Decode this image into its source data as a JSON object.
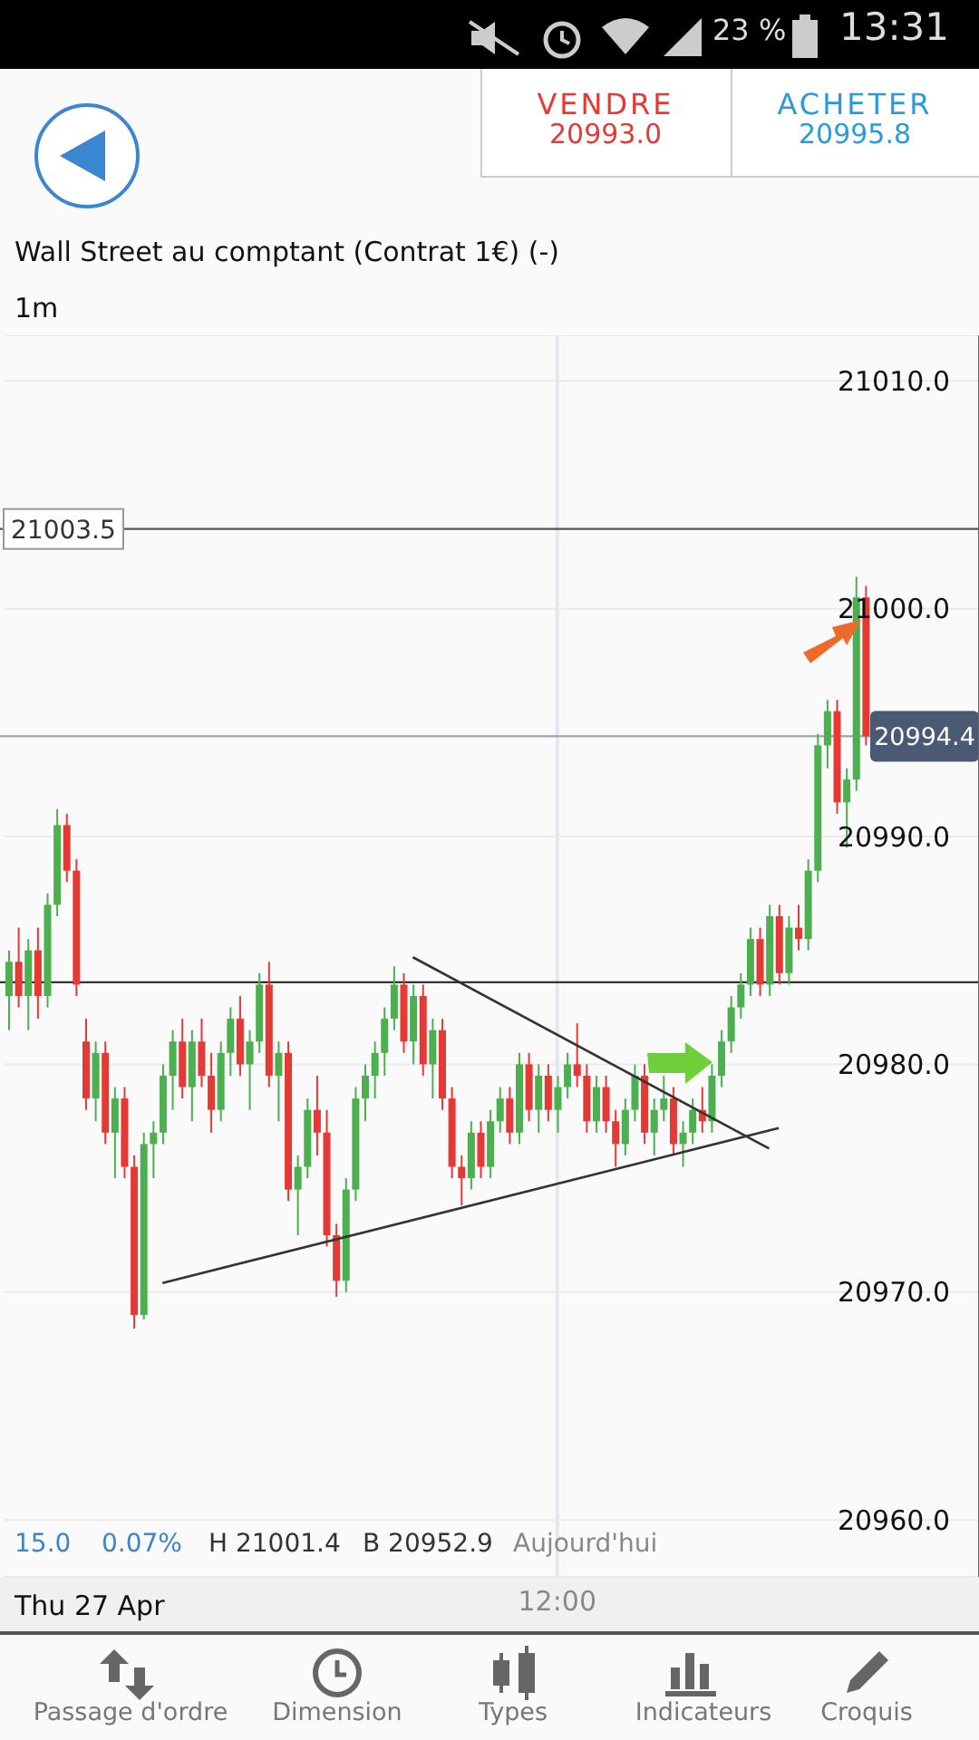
{
  "chart_data": {
    "type": "candlestick",
    "title": "Wall Street au comptant (Contrat 1€) (-)",
    "subtitle": "1m",
    "categories": [
      null,
      null,
      null,
      null,
      null,
      null,
      null,
      null,
      null,
      null,
      null,
      null,
      null,
      null,
      null,
      null,
      null,
      null,
      null,
      null,
      null,
      null,
      null,
      null,
      null,
      null,
      null,
      null,
      null,
      null,
      null,
      null,
      null,
      null,
      null,
      null,
      null,
      null,
      null,
      null,
      null,
      null,
      null,
      null,
      null,
      null,
      null,
      null,
      null,
      null,
      null,
      null,
      null,
      null,
      null,
      null,
      null,
      "12:00",
      null,
      null,
      null,
      null,
      null,
      null,
      null,
      null,
      null,
      null,
      null,
      null,
      null,
      null,
      null,
      null,
      null,
      null,
      null,
      null,
      null,
      null,
      null,
      null,
      null,
      null,
      null,
      null,
      null,
      null,
      null,
      null
    ],
    "ohlc": [
      [
        20983,
        20985,
        20981.5,
        20984.5
      ],
      [
        20984.5,
        20986,
        20982.5,
        20983
      ],
      [
        20983,
        20985.5,
        20981.5,
        20985
      ],
      [
        20985,
        20986,
        20982,
        20983
      ],
      [
        20983,
        20987.5,
        20982.5,
        20987
      ],
      [
        20987,
        20991.2,
        20986.5,
        20990.5
      ],
      [
        20990.5,
        20991,
        20988,
        20988.5
      ],
      [
        20988.5,
        20989,
        20983,
        20983.5
      ],
      [
        20981,
        20982,
        20978,
        20978.5
      ],
      [
        20978.5,
        20981,
        20977.5,
        20980.5
      ],
      [
        20980.5,
        20981,
        20976.5,
        20977
      ],
      [
        20977,
        20979,
        20975,
        20978.5
      ],
      [
        20978.5,
        20979,
        20975,
        20975.5
      ],
      [
        20975.5,
        20976,
        20968.4,
        20969
      ],
      [
        20969,
        20977,
        20968.8,
        20976.5
      ],
      [
        20976.5,
        20977.5,
        20975,
        20977
      ],
      [
        20977,
        20980,
        20976.5,
        20979.5
      ],
      [
        20979.5,
        20981.5,
        20978,
        20981
      ],
      [
        20981,
        20982,
        20978.5,
        20979
      ],
      [
        20979,
        20981.5,
        20977.5,
        20981
      ],
      [
        20981,
        20982,
        20979,
        20979.5
      ],
      [
        20979.5,
        20980.5,
        20977,
        20978
      ],
      [
        20978,
        20981,
        20977.5,
        20980.5
      ],
      [
        20980.5,
        20982.5,
        20979.5,
        20982
      ],
      [
        20982,
        20983,
        20979.5,
        20980
      ],
      [
        20980,
        20981.5,
        20978,
        20981
      ],
      [
        20981,
        20984,
        20980.5,
        20983.5
      ],
      [
        20983.5,
        20984.5,
        20979,
        20979.5
      ],
      [
        20979.5,
        20981,
        20977.5,
        20980.5
      ],
      [
        20980.5,
        20981,
        20974,
        20974.5
      ],
      [
        20974.5,
        20976,
        20972.5,
        20975.5
      ],
      [
        20975.5,
        20978.5,
        20975,
        20978
      ],
      [
        20978,
        20979.5,
        20976,
        20977
      ],
      [
        20977,
        20978,
        20972,
        20972.5
      ],
      [
        20972.5,
        20973,
        20969.8,
        20970.5
      ],
      [
        20970.5,
        20975,
        20970,
        20974.5
      ],
      [
        20974.5,
        20979,
        20974,
        20978.5
      ],
      [
        20978.5,
        20980,
        20977.5,
        20979.5
      ],
      [
        20979.5,
        20981,
        20978.5,
        20980.5
      ],
      [
        20980.5,
        20982.5,
        20979.5,
        20982
      ],
      [
        20982,
        20984.3,
        20981.5,
        20983.5
      ],
      [
        20983.5,
        20984,
        20980.5,
        20981
      ],
      [
        20981,
        20983.5,
        20980,
        20983
      ],
      [
        20983,
        20983.5,
        20979.5,
        20980
      ],
      [
        20980,
        20982,
        20978.5,
        20981.5
      ],
      [
        20981.5,
        20982,
        20978,
        20978.5
      ],
      [
        20978.5,
        20979,
        20975,
        20975.5
      ],
      [
        20975.5,
        20976,
        20973.8,
        20975
      ],
      [
        20975,
        20977.5,
        20974.5,
        20977
      ],
      [
        20977,
        20977.5,
        20975,
        20975.5
      ],
      [
        20975.5,
        20978,
        20975,
        20977.5
      ],
      [
        20977.5,
        20979,
        20977,
        20978.5
      ],
      [
        20978.5,
        20979,
        20976.5,
        20977
      ],
      [
        20977,
        20980.5,
        20976.5,
        20980
      ],
      [
        20980,
        20980.5,
        20977.5,
        20978
      ],
      [
        20978,
        20980,
        20977,
        20979.5
      ],
      [
        20979.5,
        20980,
        20977.5,
        20978
      ],
      [
        20978,
        20979.5,
        20977,
        20979
      ],
      [
        20979,
        20980.5,
        20978.5,
        20980
      ],
      [
        20980,
        20981.8,
        20979,
        20979.5
      ],
      [
        20979.5,
        20980,
        20977,
        20977.5
      ],
      [
        20977.5,
        20979.5,
        20977,
        20979
      ],
      [
        20979,
        20979.5,
        20977,
        20977.5
      ],
      [
        20977.5,
        20978,
        20975.5,
        20976.5
      ],
      [
        20976.5,
        20978.5,
        20976,
        20978
      ],
      [
        20978,
        20980,
        20977.5,
        20979.5
      ],
      [
        20979.5,
        20980,
        20976.5,
        20977
      ],
      [
        20977,
        20978.5,
        20976,
        20978
      ],
      [
        20978,
        20979.5,
        20977.5,
        20978.5
      ],
      [
        20978.5,
        20979,
        20976,
        20976.5
      ],
      [
        20976.5,
        20977.5,
        20975.5,
        20977
      ],
      [
        20977,
        20978.5,
        20976.5,
        20978
      ],
      [
        20978,
        20979,
        20977,
        20977.5
      ],
      [
        20977.5,
        20980,
        20977,
        20979.5
      ],
      [
        20979.5,
        20981.5,
        20979,
        20981
      ],
      [
        20981,
        20983,
        20980.5,
        20982.5
      ],
      [
        20982.5,
        20984,
        20982,
        20983.5
      ],
      [
        20983.5,
        20986,
        20983,
        20985.5
      ],
      [
        20985.5,
        20986,
        20983,
        20983.5
      ],
      [
        20983.5,
        20987,
        20983,
        20986.5
      ],
      [
        20986.5,
        20987,
        20983.5,
        20984
      ],
      [
        20984,
        20986.5,
        20983.5,
        20986
      ],
      [
        20986,
        20987,
        20985,
        20985.5
      ],
      [
        20985.5,
        20989,
        20985,
        20988.5
      ],
      [
        20988.5,
        20994.5,
        20988,
        20994
      ],
      [
        20994,
        20996,
        20993,
        20995.5
      ],
      [
        20995.5,
        20996,
        20991,
        20991.5
      ],
      [
        20991.5,
        20993,
        20989.5,
        20992.5
      ],
      [
        20992.5,
        21001.4,
        20992,
        21000.5
      ],
      [
        21000.5,
        21001,
        20994,
        20994.4
      ]
    ],
    "colors": [
      "#4caf50",
      "#e53935",
      "#4caf50",
      "#e53935",
      "#4caf50",
      "#4caf50",
      "#e53935",
      "#e53935",
      "#e53935",
      "#4caf50",
      "#e53935",
      "#4caf50",
      "#e53935",
      "#e53935",
      "#4caf50",
      "#4caf50",
      "#4caf50",
      "#4caf50",
      "#e53935",
      "#4caf50",
      "#e53935",
      "#e53935",
      "#4caf50",
      "#4caf50",
      "#e53935",
      "#4caf50",
      "#4caf50",
      "#e53935",
      "#4caf50",
      "#e53935",
      "#4caf50",
      "#4caf50",
      "#e53935",
      "#e53935",
      "#e53935",
      "#4caf50",
      "#4caf50",
      "#4caf50",
      "#4caf50",
      "#4caf50",
      "#4caf50",
      "#e53935",
      "#4caf50",
      "#e53935",
      "#4caf50",
      "#e53935",
      "#e53935",
      "#e53935",
      "#4caf50",
      "#e53935",
      "#4caf50",
      "#4caf50",
      "#e53935",
      "#4caf50",
      "#e53935",
      "#4caf50",
      "#e53935",
      "#4caf50",
      "#4caf50",
      "#e53935",
      "#e53935",
      "#4caf50",
      "#e53935",
      "#e53935",
      "#4caf50",
      "#4caf50",
      "#e53935",
      "#4caf50",
      "#4caf50",
      "#e53935",
      "#4caf50",
      "#4caf50",
      "#e53935",
      "#4caf50",
      "#4caf50",
      "#4caf50",
      "#4caf50",
      "#4caf50",
      "#e53935",
      "#4caf50",
      "#e53935",
      "#4caf50",
      "#e53935",
      "#4caf50",
      "#4caf50",
      "#4caf50",
      "#e53935",
      "#4caf50",
      "#4caf50",
      "#e53935"
    ],
    "series": [
      {
        "type": "line",
        "color": "#333333",
        "values": [
          null,
          null,
          null,
          null,
          null,
          null,
          null,
          null,
          null,
          null,
          null,
          null,
          null,
          null,
          null,
          null,
          20970.4,
          null,
          null,
          null,
          null,
          null,
          null,
          null,
          null,
          null,
          null,
          null,
          null,
          null,
          null,
          null,
          null,
          null,
          null,
          null,
          null,
          null,
          null,
          null,
          null,
          null,
          null,
          null,
          null,
          null,
          null,
          null,
          null,
          null,
          null,
          null,
          null,
          null,
          null,
          null,
          null,
          null,
          null,
          null,
          null,
          null,
          null,
          null,
          null,
          null,
          null,
          null,
          null,
          null,
          null,
          null,
          null,
          null,
          null,
          null,
          null,
          null,
          null,
          null,
          20977.2,
          null,
          null,
          null,
          null,
          null,
          null,
          null,
          null,
          null
        ]
      },
      {
        "type": "line",
        "color": "#333333",
        "values": [
          null,
          null,
          null,
          null,
          null,
          null,
          null,
          null,
          null,
          null,
          null,
          null,
          null,
          null,
          null,
          null,
          null,
          null,
          null,
          null,
          null,
          null,
          null,
          null,
          null,
          null,
          null,
          null,
          null,
          null,
          null,
          null,
          null,
          null,
          null,
          null,
          null,
          null,
          null,
          null,
          null,
          null,
          20984.7,
          null,
          null,
          null,
          null,
          null,
          null,
          null,
          null,
          null,
          null,
          null,
          null,
          null,
          null,
          null,
          null,
          null,
          null,
          null,
          null,
          null,
          null,
          null,
          null,
          null,
          null,
          null,
          null,
          null,
          null,
          null,
          null,
          null,
          null,
          null,
          null,
          20976.3,
          null,
          null,
          null,
          null,
          null,
          null,
          null,
          null,
          null,
          null
        ]
      }
    ],
    "marker": "none",
    "ylim": [
      20957.5,
      21012
    ],
    "yticks": [
      {
        "value": 20960,
        "label": "20960.0"
      },
      {
        "value": 20970,
        "label": "20970.0"
      },
      {
        "value": 20980,
        "label": "20980.0"
      },
      {
        "value": 20990,
        "label": "20990.0"
      },
      {
        "value": 21000,
        "label": "21000.0"
      },
      {
        "value": 21010,
        "label": "21010.0"
      }
    ],
    "grid": true,
    "ref_lines": [
      {
        "axis": "y",
        "value": 21003.5,
        "label": "21003.5",
        "color": "#555555"
      },
      {
        "axis": "y",
        "value": 20994.4,
        "label": "20994.4",
        "color": "#9aa4b4"
      },
      {
        "axis": "y",
        "value": 20983.6,
        "label": null,
        "color": "#333333"
      }
    ],
    "annotations": [
      "VENDRE",
      "20993.0",
      "ACHETER",
      "20995.8",
      "15.0",
      "0.07%",
      "H 21001.4",
      "B 20952.9",
      "Aujourd'hui",
      "Thu 27 Apr",
      "23 %",
      "13:31",
      "Passage d'ordre",
      "Dimension",
      "Types",
      "Indicateurs",
      "Croquis"
    ]
  }
}
